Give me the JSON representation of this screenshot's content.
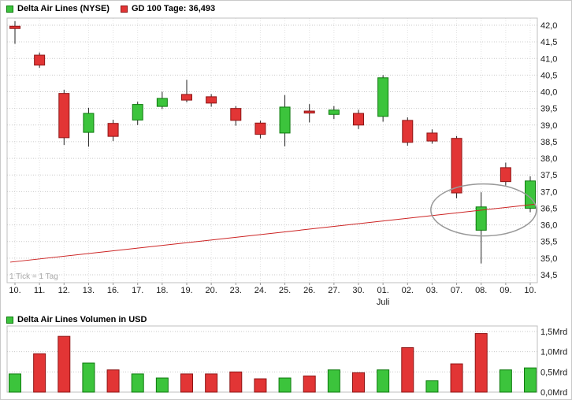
{
  "header": {
    "price_legend": "Delta Air Lines (NYSE)",
    "ma_legend": "GD 100 Tage: 36,493"
  },
  "note": "1 Tick = 1 Tag",
  "volume_legend": "Delta Air Lines Volumen in USD",
  "colors": {
    "up_fill": "#3cc43c",
    "up_border": "#0e7a0e",
    "down_fill": "#e23535",
    "down_border": "#8e1515",
    "wick": "#222222",
    "ma_line": "#cc2222",
    "grid": "#c9c9c9",
    "vgrid": "#e3e3e3",
    "axis_text": "#1a1a1a",
    "muted_text": "#aaaaaa",
    "ellipse": "#999999",
    "plot_border": "#bfbfbf"
  },
  "chart_data": {
    "type": "candlestick",
    "title": "Delta Air Lines (NYSE)",
    "ma": {
      "label": "GD 100 Tage",
      "value_label": "36,493",
      "start_price": 34.88,
      "end_price": 36.62
    },
    "x_labels": [
      "10.",
      "11.",
      "12.",
      "13.",
      "16.",
      "17.",
      "18.",
      "19.",
      "20.",
      "23.",
      "24.",
      "25.",
      "26.",
      "27.",
      "30.",
      "01.",
      "02.",
      "03.",
      "07.",
      "08.",
      "09.",
      "10."
    ],
    "month_label": "Juli",
    "month_label_index": 15,
    "price_axis": {
      "tick_labels": [
        "42,0",
        "41,5",
        "41,0",
        "40,5",
        "40,0",
        "39,5",
        "39,0",
        "38,5",
        "38,0",
        "37,5",
        "37,0",
        "36,5",
        "36,0",
        "35,5",
        "35,0",
        "34,5"
      ],
      "tick_values": [
        42.0,
        41.5,
        41.0,
        40.5,
        40.0,
        39.5,
        39.0,
        38.5,
        38.0,
        37.5,
        37.0,
        36.5,
        36.0,
        35.5,
        35.0,
        34.5
      ],
      "range": [
        34.26,
        42.21
      ]
    },
    "candles": [
      {
        "o": 41.97,
        "h": 42.12,
        "l": 41.44,
        "c": 41.9,
        "d": "down"
      },
      {
        "o": 41.1,
        "h": 41.18,
        "l": 40.72,
        "c": 40.8,
        "d": "down"
      },
      {
        "o": 39.95,
        "h": 40.06,
        "l": 38.4,
        "c": 38.62,
        "d": "down"
      },
      {
        "o": 38.78,
        "h": 39.52,
        "l": 38.35,
        "c": 39.35,
        "d": "up"
      },
      {
        "o": 39.05,
        "h": 39.16,
        "l": 38.52,
        "c": 38.66,
        "d": "down"
      },
      {
        "o": 39.15,
        "h": 39.7,
        "l": 39.0,
        "c": 39.62,
        "d": "up"
      },
      {
        "o": 39.56,
        "h": 40.0,
        "l": 39.48,
        "c": 39.8,
        "d": "up"
      },
      {
        "o": 39.92,
        "h": 40.36,
        "l": 39.68,
        "c": 39.75,
        "d": "down"
      },
      {
        "o": 39.85,
        "h": 39.93,
        "l": 39.55,
        "c": 39.66,
        "d": "down"
      },
      {
        "o": 39.5,
        "h": 39.57,
        "l": 38.98,
        "c": 39.14,
        "d": "down"
      },
      {
        "o": 39.06,
        "h": 39.13,
        "l": 38.6,
        "c": 38.72,
        "d": "down"
      },
      {
        "o": 38.76,
        "h": 39.9,
        "l": 38.36,
        "c": 39.54,
        "d": "up"
      },
      {
        "o": 39.42,
        "h": 39.63,
        "l": 39.08,
        "c": 39.36,
        "d": "down"
      },
      {
        "o": 39.32,
        "h": 39.57,
        "l": 39.18,
        "c": 39.45,
        "d": "up"
      },
      {
        "o": 39.35,
        "h": 39.46,
        "l": 38.88,
        "c": 39.0,
        "d": "down"
      },
      {
        "o": 39.26,
        "h": 40.5,
        "l": 39.1,
        "c": 40.42,
        "d": "up"
      },
      {
        "o": 39.14,
        "h": 39.23,
        "l": 38.38,
        "c": 38.48,
        "d": "down"
      },
      {
        "o": 38.76,
        "h": 38.87,
        "l": 38.44,
        "c": 38.52,
        "d": "down"
      },
      {
        "o": 38.6,
        "h": 38.67,
        "l": 36.8,
        "c": 36.96,
        "d": "down"
      },
      {
        "o": 35.84,
        "h": 36.98,
        "l": 34.84,
        "c": 36.54,
        "d": "up"
      },
      {
        "o": 37.72,
        "h": 37.87,
        "l": 37.18,
        "c": 37.3,
        "d": "down"
      },
      {
        "o": 36.5,
        "h": 37.46,
        "l": 36.38,
        "c": 37.32,
        "d": "up"
      }
    ],
    "highlight_ellipse": {
      "center_index": 19.1,
      "center_price": 36.45
    },
    "volume": {
      "unit": "Mrd",
      "tick_labels": [
        "1,5Mrd",
        "1,0Mrd",
        "0,5Mrd",
        "0,0Mrd"
      ],
      "tick_values": [
        1.5,
        1.0,
        0.5,
        0.0
      ],
      "values": [
        0.45,
        0.95,
        1.38,
        0.72,
        0.55,
        0.45,
        0.35,
        0.45,
        0.45,
        0.5,
        0.33,
        0.35,
        0.4,
        0.55,
        0.48,
        0.55,
        1.1,
        0.28,
        0.7,
        1.45,
        0.55,
        0.6
      ],
      "directions": [
        "up",
        "down",
        "down",
        "up",
        "down",
        "up",
        "up",
        "down",
        "down",
        "down",
        "down",
        "up",
        "down",
        "up",
        "down",
        "up",
        "down",
        "up",
        "down",
        "down",
        "up",
        "up"
      ]
    }
  }
}
